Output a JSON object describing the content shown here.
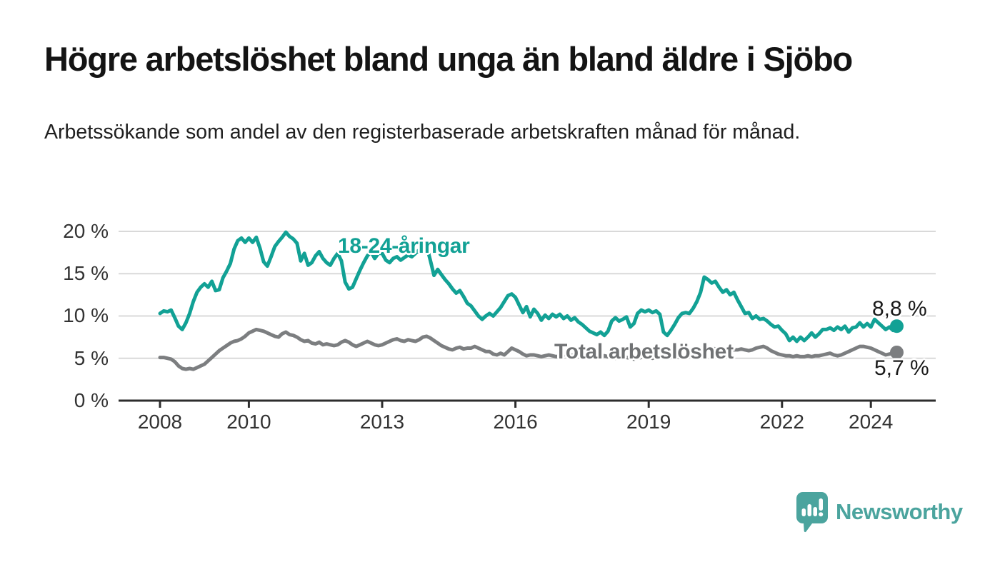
{
  "header": {
    "title": "Högre arbetslöshet bland unga än bland äldre i Sjöbo",
    "subtitle": "Arbetssökande som andel av den registerbaserade arbetskraften månad för månad."
  },
  "colors": {
    "accent_young_line": "#12a195",
    "total_line": "#7c7e80",
    "total_label_text": "#707274",
    "title_text": "#141414",
    "subtitle_text": "#202020",
    "axis_text": "#333333",
    "axis_line": "#2d2d2d",
    "grid_line": "#d9d9d9",
    "value_label_text": "#1a1a1a",
    "brand_teal": "#4ba49e"
  },
  "chart_data": {
    "type": "line",
    "title": "Högre arbetslöshet bland unga än bland äldre i Sjöbo",
    "subtitle": "Arbetssökande som andel av den registerbaserade arbetskraften månad för månad.",
    "xlabel": "",
    "ylabel": "",
    "ylim": [
      0,
      21
    ],
    "grid": "horizontal",
    "legend_position": "direct-line-labels",
    "x_start_year": 2008,
    "points_per_year": 12,
    "x_ticks": [
      {
        "year": 2008,
        "label": "2008"
      },
      {
        "year": 2010,
        "label": "2010"
      },
      {
        "year": 2013,
        "label": "2013"
      },
      {
        "year": 2016,
        "label": "2016"
      },
      {
        "year": 2019,
        "label": "2019"
      },
      {
        "year": 2022,
        "label": "2022"
      },
      {
        "year": 2024,
        "label": "2024"
      }
    ],
    "y_ticks": [
      {
        "value": 0,
        "label": "0 %"
      },
      {
        "value": 5,
        "label": "5 %"
      },
      {
        "value": 10,
        "label": "10 %"
      },
      {
        "value": 15,
        "label": "15 %"
      },
      {
        "value": 20,
        "label": "20 %"
      }
    ],
    "series": [
      {
        "id": "young",
        "name": "18-24-åringar",
        "color": "#12a195",
        "end_value": 8.8,
        "end_value_label": "8,8 %",
        "values": [
          10.3,
          10.6,
          10.5,
          10.7,
          9.8,
          8.8,
          8.4,
          9.2,
          10.3,
          11.7,
          12.8,
          13.4,
          13.8,
          13.4,
          14.1,
          13.0,
          13.1,
          14.5,
          15.3,
          16.2,
          17.9,
          18.9,
          19.2,
          18.7,
          19.2,
          18.7,
          19.3,
          18.0,
          16.4,
          15.9,
          17.0,
          18.2,
          18.8,
          19.3,
          19.9,
          19.4,
          19.1,
          18.6,
          16.5,
          17.4,
          16.0,
          16.3,
          17.1,
          17.6,
          16.8,
          16.3,
          16.0,
          16.8,
          17.4,
          16.5,
          14.0,
          13.2,
          13.4,
          14.4,
          15.4,
          16.3,
          17.1,
          17.6,
          16.8,
          17.4,
          17.4,
          16.6,
          16.3,
          16.8,
          17.0,
          16.6,
          16.9,
          17.2,
          17.0,
          17.4,
          17.8,
          18.1,
          18.3,
          16.6,
          14.8,
          15.5,
          14.9,
          14.3,
          13.8,
          13.2,
          12.7,
          13.0,
          12.3,
          11.5,
          11.2,
          10.6,
          10.0,
          9.6,
          10.0,
          10.3,
          10.0,
          10.5,
          11.0,
          11.7,
          12.4,
          12.6,
          12.2,
          11.3,
          10.4,
          11.1,
          9.9,
          10.8,
          10.3,
          9.5,
          10.1,
          9.7,
          10.2,
          9.9,
          10.2,
          9.7,
          10.0,
          9.5,
          9.8,
          9.3,
          9.0,
          8.6,
          8.2,
          8.0,
          7.8,
          8.1,
          7.7,
          8.2,
          9.4,
          9.8,
          9.4,
          9.6,
          9.9,
          8.7,
          9.1,
          10.3,
          10.7,
          10.5,
          10.7,
          10.4,
          10.6,
          10.2,
          8.1,
          7.7,
          8.3,
          9.0,
          9.8,
          10.3,
          10.4,
          10.3,
          10.9,
          11.7,
          12.8,
          14.6,
          14.3,
          13.9,
          14.1,
          13.4,
          12.8,
          13.1,
          12.5,
          12.8,
          11.9,
          11.1,
          10.3,
          10.4,
          9.7,
          10.0,
          9.6,
          9.7,
          9.4,
          9.0,
          8.7,
          8.8,
          8.3,
          7.9,
          7.1,
          7.5,
          7.0,
          7.5,
          7.1,
          7.5,
          8.0,
          7.5,
          7.9,
          8.4,
          8.4,
          8.6,
          8.3,
          8.7,
          8.4,
          8.8,
          8.1,
          8.6,
          8.7,
          9.2,
          8.7,
          9.1,
          8.7,
          9.6,
          9.2,
          8.8,
          8.4,
          8.7,
          8.3,
          8.8
        ]
      },
      {
        "id": "total",
        "name": "Total arbetslöshet",
        "color": "#7c7e80",
        "end_value": 5.7,
        "end_value_label": "5,7 %",
        "values": [
          5.1,
          5.1,
          5.0,
          4.9,
          4.6,
          4.1,
          3.8,
          3.7,
          3.8,
          3.7,
          3.9,
          4.1,
          4.3,
          4.7,
          5.1,
          5.5,
          5.9,
          6.2,
          6.5,
          6.8,
          7.0,
          7.1,
          7.3,
          7.6,
          8.0,
          8.2,
          8.4,
          8.3,
          8.2,
          8.0,
          7.8,
          7.6,
          7.5,
          7.9,
          8.1,
          7.8,
          7.7,
          7.5,
          7.2,
          7.0,
          7.1,
          6.8,
          6.7,
          6.9,
          6.6,
          6.7,
          6.6,
          6.5,
          6.6,
          6.9,
          7.1,
          6.9,
          6.6,
          6.4,
          6.6,
          6.8,
          7.0,
          6.8,
          6.6,
          6.5,
          6.6,
          6.8,
          7.0,
          7.2,
          7.3,
          7.1,
          7.0,
          7.2,
          7.1,
          7.0,
          7.2,
          7.5,
          7.6,
          7.4,
          7.1,
          6.8,
          6.5,
          6.3,
          6.1,
          6.0,
          6.2,
          6.3,
          6.1,
          6.2,
          6.2,
          6.4,
          6.2,
          6.0,
          5.8,
          5.8,
          5.5,
          5.4,
          5.6,
          5.4,
          5.8,
          6.2,
          6.0,
          5.8,
          5.5,
          5.3,
          5.4,
          5.4,
          5.3,
          5.2,
          5.3,
          5.4,
          5.3,
          5.2,
          5.3,
          5.4,
          5.5,
          5.4,
          5.3,
          5.2,
          5.3,
          5.4,
          5.3,
          5.2,
          5.1,
          5.2,
          5.3,
          5.2,
          5.1,
          5.0,
          5.1,
          5.2,
          5.1,
          5.0,
          4.9,
          5.0,
          5.1,
          5.2,
          5.1,
          5.0,
          5.1,
          5.2,
          5.1,
          5.0,
          5.1,
          5.2,
          5.1,
          5.2,
          5.1,
          5.2,
          5.3,
          5.5,
          6.0,
          6.4,
          6.3,
          6.2,
          6.1,
          6.0,
          5.9,
          5.9,
          6.0,
          6.0,
          6.0,
          6.1,
          6.0,
          5.9,
          6.0,
          6.2,
          6.3,
          6.4,
          6.2,
          5.9,
          5.7,
          5.5,
          5.4,
          5.3,
          5.3,
          5.2,
          5.3,
          5.2,
          5.2,
          5.3,
          5.2,
          5.3,
          5.3,
          5.4,
          5.5,
          5.6,
          5.4,
          5.3,
          5.4,
          5.6,
          5.8,
          6.0,
          6.2,
          6.4,
          6.4,
          6.3,
          6.2,
          6.0,
          5.8,
          5.6,
          5.4,
          5.5,
          5.6,
          5.7
        ]
      }
    ]
  },
  "branding": {
    "wordmark": "Newsworthy",
    "icon": "bar-chart-speech-bubble-icon"
  }
}
